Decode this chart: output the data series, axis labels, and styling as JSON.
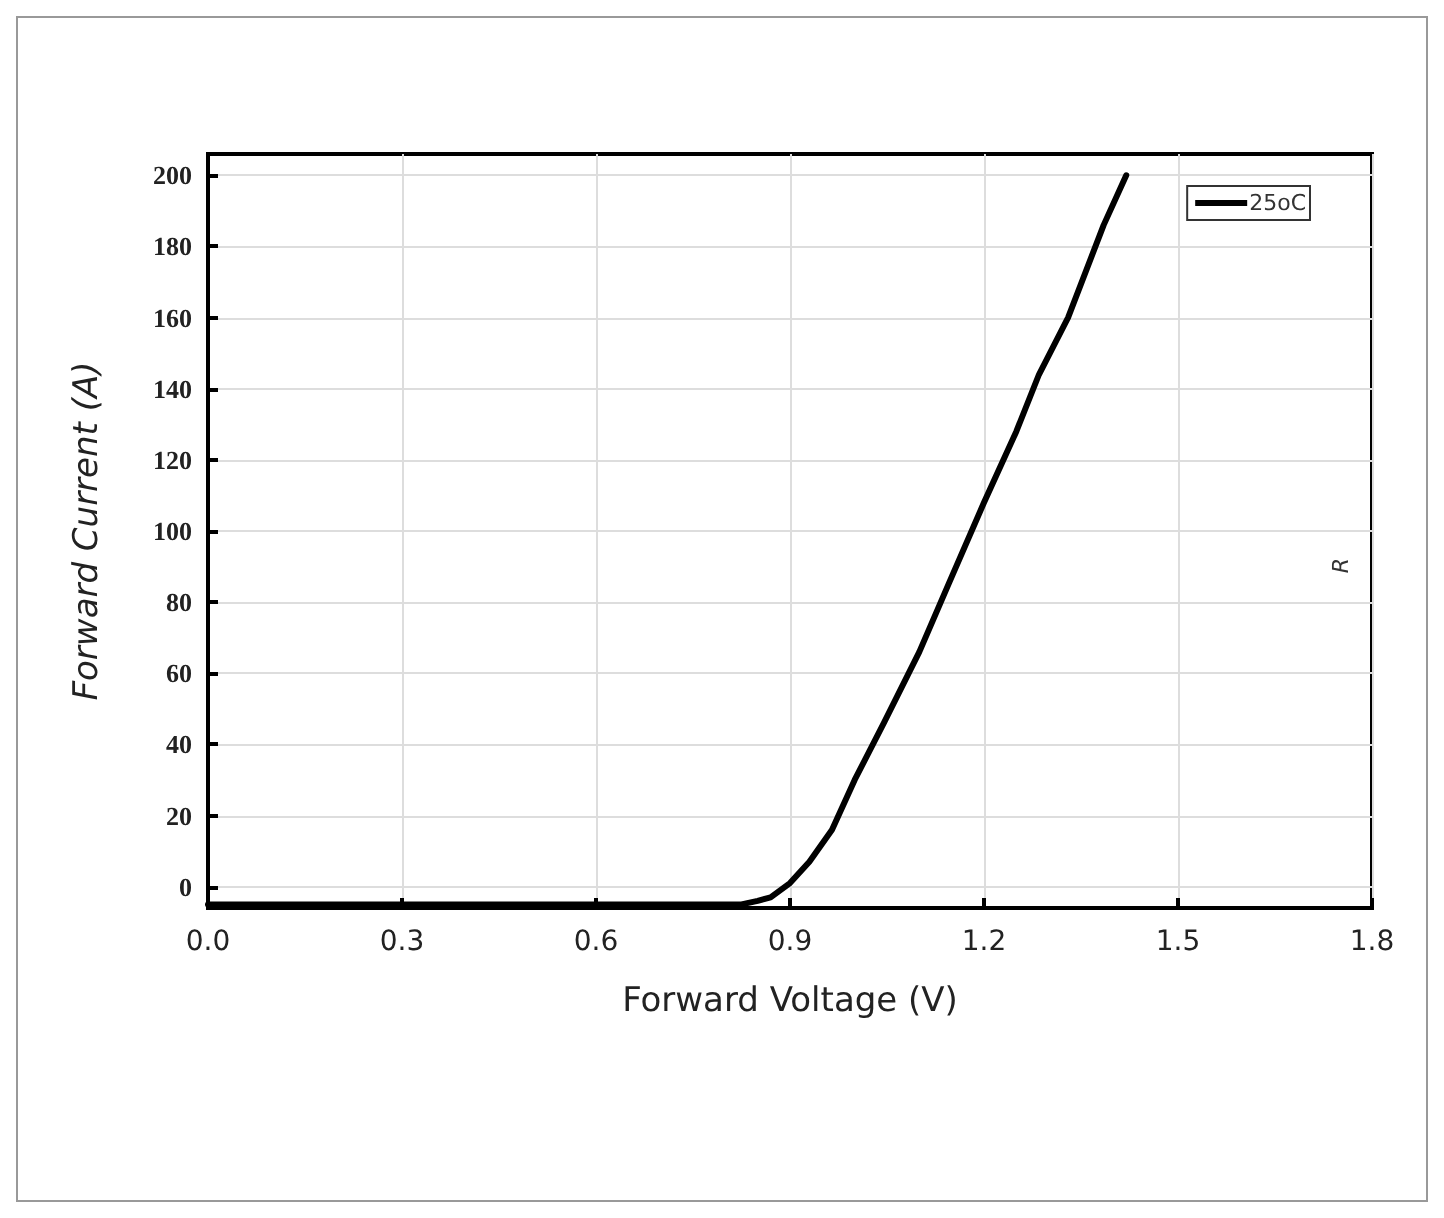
{
  "chart_data": {
    "type": "line",
    "xlabel": "Forward Voltage (V)",
    "ylabel": "Forward Current (A)",
    "x": [
      0,
      0.3,
      0.6,
      0.75,
      0.8,
      0.825,
      0.85,
      0.87,
      0.9,
      0.93,
      0.965,
      1.0,
      1.045,
      1.1,
      1.145,
      1.2,
      1.25,
      1.285,
      1.33,
      1.385,
      1.42
    ],
    "series": [
      {
        "name": "25oC",
        "color": "#000000",
        "values": [
          -5,
          -5,
          -5,
          -5,
          -5,
          -5,
          -4,
          -3,
          1,
          7,
          16,
          30,
          46,
          66,
          85,
          108,
          128,
          144,
          160,
          186,
          200
        ]
      }
    ],
    "xlim": [
      0,
      1.8
    ],
    "xticks": [
      {
        "value": 0,
        "label": "0.0"
      },
      0.3,
      0.6,
      0.9,
      1.2,
      1.5,
      1.8
    ],
    "ylim": [
      -6,
      206
    ],
    "yticks": [
      0,
      20,
      40,
      60,
      80,
      100,
      120,
      140,
      160,
      180,
      200
    ],
    "annotations": [
      "R"
    ],
    "grid": true,
    "legend": "top right",
    "marker": "none",
    "line_style": "solid"
  }
}
